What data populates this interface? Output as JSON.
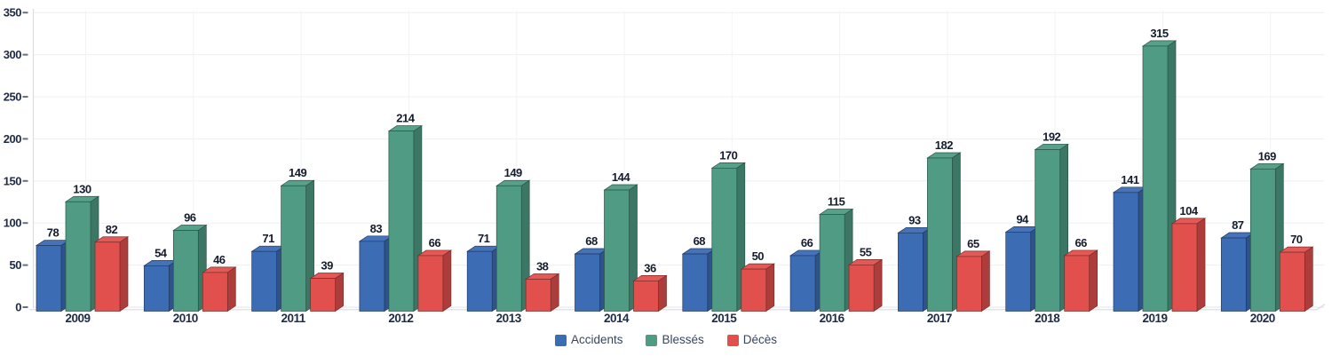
{
  "chart_data": {
    "type": "bar",
    "style": "3d-columns",
    "title": "",
    "xlabel": "",
    "ylabel": "",
    "categories": [
      "2009",
      "2010",
      "2011",
      "2012",
      "2013",
      "2014",
      "2015",
      "2016",
      "2017",
      "2018",
      "2019",
      "2020"
    ],
    "series": [
      {
        "name": "Accidents",
        "color": "#3c6cb4",
        "values": [
          78,
          54,
          71,
          83,
          71,
          68,
          68,
          66,
          93,
          94,
          141,
          87
        ]
      },
      {
        "name": "Blessés",
        "color": "#4f9b83",
        "values": [
          130,
          96,
          149,
          214,
          149,
          144,
          170,
          115,
          182,
          192,
          315,
          169
        ]
      },
      {
        "name": "Décès",
        "color": "#e2504d",
        "values": [
          82,
          46,
          39,
          66,
          38,
          36,
          50,
          55,
          65,
          66,
          104,
          70
        ]
      }
    ],
    "ylim": [
      0,
      350
    ],
    "yticks": [
      0,
      50,
      100,
      150,
      200,
      250,
      300,
      350
    ],
    "grid": true,
    "value_labels_shown": true,
    "legend_position": "bottom"
  },
  "colors": {
    "axis_text": "#1f2a44",
    "value_text": "#151c2e",
    "legend_text": "#38455c",
    "gridline": "#eef0f3",
    "axis_line": "#d9dce1"
  }
}
